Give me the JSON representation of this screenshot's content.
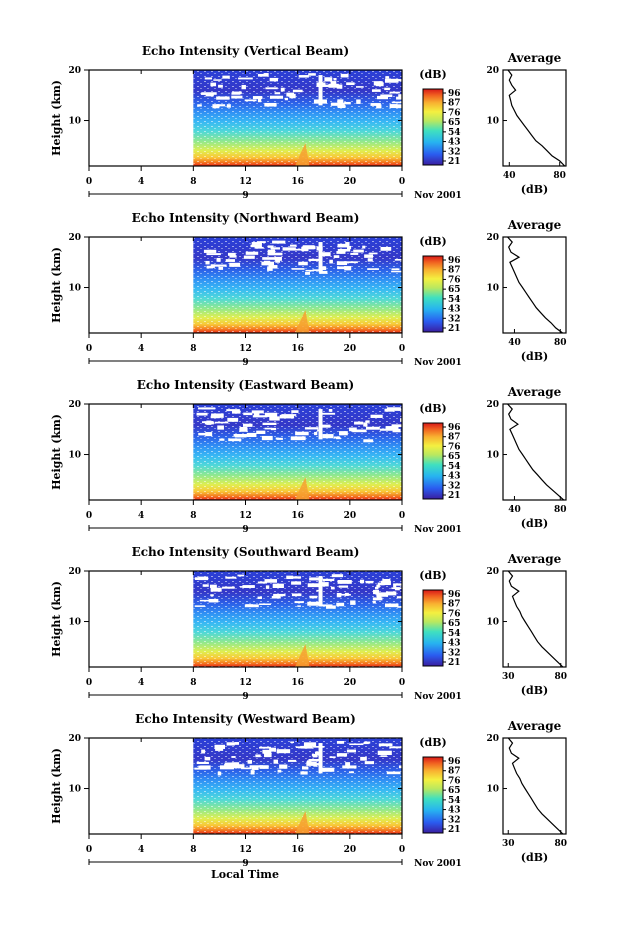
{
  "shared": {
    "date_label": "Nov 2001",
    "day_label": "9",
    "x_ticks": [
      "0",
      "4",
      "8",
      "12",
      "16",
      "20",
      "0"
    ],
    "y_ticks": [
      "20",
      "10"
    ],
    "height_label": "Height (km)",
    "db_label": "(dB)",
    "avg_title": "Average",
    "avg_xlabel": "(dB)",
    "colorbar_values": [
      "96",
      "87",
      "76",
      "65",
      "54",
      "43",
      "32",
      "21"
    ],
    "local_time_label": "Local Time"
  },
  "chart_data": [
    {
      "type": "heatmap",
      "title": "Echo Intensity (Vertical Beam)",
      "xlim": [
        0,
        24
      ],
      "ylim": [
        1,
        20
      ],
      "data_start_hour": 8,
      "colorbar_ticks": [
        "96",
        "87",
        "76",
        "65",
        "54",
        "43",
        "32",
        "21"
      ],
      "average_profile": {
        "type": "line",
        "x_ticks": [
          "40",
          "80"
        ],
        "xlim": [
          35,
          85
        ],
        "y_ticks": [
          "20",
          "10"
        ],
        "height": [
          1,
          2,
          3,
          4,
          5,
          6,
          7,
          8,
          9,
          10,
          11,
          12,
          13,
          14,
          15,
          16,
          17,
          18,
          19,
          20
        ],
        "db": [
          84,
          80,
          74,
          70,
          66,
          61,
          58,
          55,
          52,
          49,
          46,
          44,
          42,
          41,
          40,
          45,
          42,
          40,
          42,
          39
        ]
      }
    },
    {
      "type": "heatmap",
      "title": "Echo Intensity (Northward Beam)",
      "xlim": [
        0,
        24
      ],
      "ylim": [
        1,
        20
      ],
      "data_start_hour": 8,
      "colorbar_ticks": [
        "96",
        "87",
        "76",
        "65",
        "54",
        "43",
        "32",
        "21"
      ],
      "average_profile": {
        "type": "line",
        "x_ticks": [
          "40",
          "80"
        ],
        "xlim": [
          30,
          85
        ],
        "y_ticks": [
          "20",
          "10"
        ],
        "height": [
          1,
          2,
          3,
          4,
          5,
          6,
          7,
          8,
          9,
          10,
          11,
          12,
          13,
          14,
          15,
          16,
          17,
          18,
          19,
          20
        ],
        "db": [
          82,
          76,
          72,
          67,
          63,
          59,
          56,
          53,
          50,
          47,
          44,
          42,
          40,
          38,
          36,
          44,
          37,
          35,
          38,
          34
        ]
      }
    },
    {
      "type": "heatmap",
      "title": "Echo Intensity (Eastward Beam)",
      "xlim": [
        0,
        24
      ],
      "ylim": [
        1,
        20
      ],
      "data_start_hour": 8,
      "colorbar_ticks": [
        "96",
        "87",
        "76",
        "65",
        "54",
        "43",
        "32",
        "21"
      ],
      "average_profile": {
        "type": "line",
        "x_ticks": [
          "40",
          "80"
        ],
        "xlim": [
          30,
          85
        ],
        "y_ticks": [
          "20",
          "10"
        ],
        "height": [
          1,
          2,
          3,
          4,
          5,
          6,
          7,
          8,
          9,
          10,
          11,
          12,
          13,
          14,
          15,
          16,
          17,
          18,
          19,
          20
        ],
        "db": [
          83,
          78,
          73,
          68,
          64,
          60,
          56,
          53,
          50,
          47,
          44,
          42,
          40,
          38,
          36,
          43,
          37,
          35,
          38,
          34
        ]
      }
    },
    {
      "type": "heatmap",
      "title": "Echo Intensity (Southward Beam)",
      "xlim": [
        0,
        24
      ],
      "ylim": [
        1,
        20
      ],
      "data_start_hour": 8,
      "colorbar_ticks": [
        "96",
        "87",
        "76",
        "65",
        "54",
        "43",
        "32",
        "21"
      ],
      "average_profile": {
        "type": "line",
        "x_ticks": [
          "30",
          "80"
        ],
        "xlim": [
          25,
          85
        ],
        "y_ticks": [
          "20",
          "10"
        ],
        "height": [
          1,
          2,
          3,
          4,
          5,
          6,
          7,
          8,
          9,
          10,
          11,
          12,
          13,
          14,
          15,
          16,
          17,
          18,
          19,
          20
        ],
        "db": [
          82,
          77,
          72,
          67,
          62,
          58,
          55,
          52,
          49,
          46,
          43,
          41,
          38,
          36,
          34,
          40,
          33,
          31,
          34,
          30
        ]
      }
    },
    {
      "type": "heatmap",
      "title": "Echo Intensity (Westward Beam)",
      "xlim": [
        0,
        24
      ],
      "ylim": [
        1,
        20
      ],
      "data_start_hour": 8,
      "colorbar_ticks": [
        "96",
        "87",
        "76",
        "65",
        "54",
        "43",
        "32",
        "21"
      ],
      "average_profile": {
        "type": "line",
        "x_ticks": [
          "30",
          "80"
        ],
        "xlim": [
          25,
          85
        ],
        "y_ticks": [
          "20",
          "10"
        ],
        "height": [
          1,
          2,
          3,
          4,
          5,
          6,
          7,
          8,
          9,
          10,
          11,
          12,
          13,
          14,
          15,
          16,
          17,
          18,
          19,
          20
        ],
        "db": [
          82,
          77,
          72,
          67,
          62,
          58,
          55,
          52,
          49,
          46,
          43,
          41,
          38,
          36,
          34,
          40,
          33,
          31,
          34,
          30
        ]
      }
    }
  ]
}
